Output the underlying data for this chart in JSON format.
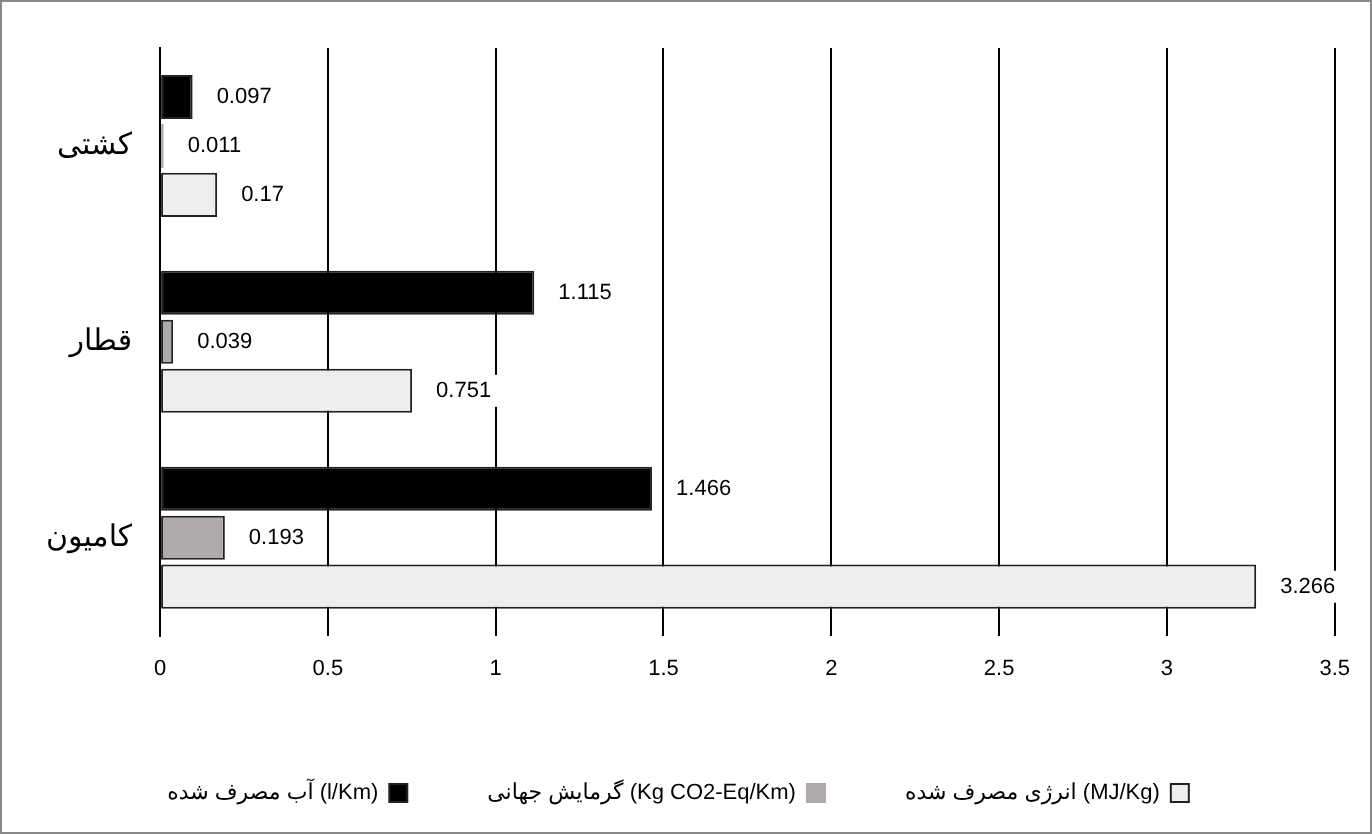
{
  "chart_data": {
    "type": "bar",
    "orientation": "horizontal",
    "categories": [
      "کشتی",
      "قطار",
      "کامیون"
    ],
    "series": [
      {
        "name": "آب مصرف شده (l/Km)",
        "color": "#000000",
        "values": [
          0.097,
          1.115,
          1.466
        ]
      },
      {
        "name": "گرمایش جهانی (Kg CO2-Eq/Km)",
        "color": "#aeaaaa",
        "values": [
          0.011,
          0.039,
          0.193
        ]
      },
      {
        "name": "انرژی مصرف شده (MJ/Kg)",
        "color": "#eeeeee",
        "values": [
          0.17,
          0.751,
          3.266
        ]
      }
    ],
    "xlim": [
      0,
      3.5
    ],
    "xticks": [
      0,
      0.5,
      1,
      1.5,
      2,
      2.5,
      3,
      3.5
    ],
    "grid": "x",
    "legend": "bottom",
    "data_labels": true
  }
}
